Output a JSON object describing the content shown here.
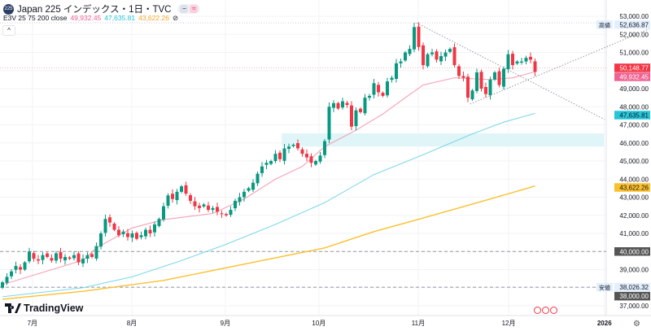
{
  "header": {
    "symbol_badge": "225",
    "title": "Japan 225 インデックス・1日・TVC",
    "pill_icons": [
      "minus-icon",
      "wave-icon"
    ]
  },
  "indicator": {
    "label": "E3V 25 75 200 close",
    "ma25": "49,932.45",
    "ma75": "47,635.81",
    "ma200": "43,622.26",
    "hide_icon": "eye-off-icon"
  },
  "colors": {
    "up": "#089981",
    "down": "#f23645",
    "ma25": "#f7a1b7",
    "ma75": "#7dd8e8",
    "ma200": "#fbc02d",
    "zone": "#dff5f8",
    "high_label_bg": "#e3effd",
    "dark_label": "#555555"
  },
  "logo": {
    "text": "TradingView"
  },
  "chart_data": {
    "type": "candlestick",
    "y_ticks": [
      "53,000.00",
      "52,000.00",
      "51,000.00",
      "49,000.00",
      "48,000.00",
      "47,000.00",
      "46,000.00",
      "45,000.00",
      "44,000.00",
      "43,000.00",
      "42,000.00",
      "41,000.00",
      "39,000.00",
      "37,000.00"
    ],
    "ylim": [
      36500,
      53500
    ],
    "x_ticks": [
      {
        "label": "7月",
        "index": 6.7
      },
      {
        "label": "8月",
        "index": 28.9
      },
      {
        "label": "9月",
        "index": 49.8
      },
      {
        "label": "10月",
        "index": 70.7
      },
      {
        "label": "11月",
        "index": 92.9
      },
      {
        "label": "12月",
        "index": 113.1
      },
      {
        "label": "2026",
        "index": 134.5
      }
    ],
    "closes": [
      38300,
      38600,
      38900,
      39200,
      39000,
      39400,
      40000,
      39600,
      39500,
      39800,
      39700,
      39500,
      39900,
      39600,
      39700,
      39600,
      39800,
      39400,
      39600,
      39800,
      39700,
      40300,
      41000,
      41800,
      41600,
      41200,
      40900,
      41100,
      40800,
      41000,
      40700,
      40900,
      41200,
      41000,
      41500,
      41800,
      42500,
      43100,
      42900,
      43300,
      43600,
      43200,
      42800,
      42500,
      42400,
      42600,
      42300,
      42400,
      42200,
      42100,
      42000,
      42300,
      42800,
      43000,
      43300,
      43500,
      43800,
      44300,
      44700,
      44900,
      45000,
      45400,
      45100,
      45700,
      45800,
      45900,
      45700,
      45400,
      45200,
      44900,
      45000,
      45300,
      46100,
      48000,
      48200,
      47900,
      48300,
      48100,
      46900,
      47800,
      47700,
      48500,
      48600,
      49300,
      48800,
      48600,
      49400,
      49600,
      50400,
      50500,
      51000,
      51200,
      52400,
      51300,
      50300,
      50900,
      51000,
      50600,
      50800,
      51000,
      51200,
      50300,
      49700,
      49600,
      48500,
      48900,
      49900,
      49000,
      48700,
      49500,
      49900,
      49200,
      50100,
      50900,
      50300,
      50500,
      50500,
      50700,
      50600,
      49932
    ],
    "ma25": [
      [
        0,
        38170
      ],
      [
        18,
        39520
      ],
      [
        21,
        40200
      ],
      [
        29,
        41300
      ],
      [
        36,
        41760
      ],
      [
        47,
        42100
      ],
      [
        54,
        42900
      ],
      [
        61,
        44000
      ],
      [
        67,
        44700
      ],
      [
        72,
        45800
      ],
      [
        79,
        46700
      ],
      [
        85,
        47600
      ],
      [
        90,
        48500
      ],
      [
        94,
        49200
      ],
      [
        101,
        49600
      ],
      [
        109,
        49500
      ],
      [
        114,
        49600
      ],
      [
        119,
        49932
      ]
    ],
    "ma75": [
      [
        0,
        37500
      ],
      [
        18,
        38000
      ],
      [
        29,
        38600
      ],
      [
        40,
        39500
      ],
      [
        50,
        40400
      ],
      [
        61,
        41500
      ],
      [
        72,
        42700
      ],
      [
        83,
        44250
      ],
      [
        94,
        45350
      ],
      [
        105,
        46500
      ],
      [
        112,
        47150
      ],
      [
        119,
        47635
      ]
    ],
    "ma200": [
      [
        0,
        37360
      ],
      [
        18,
        37800
      ],
      [
        36,
        38400
      ],
      [
        54,
        39300
      ],
      [
        72,
        40200
      ],
      [
        83,
        41100
      ],
      [
        94,
        41850
      ],
      [
        109,
        42900
      ],
      [
        119,
        43622
      ]
    ],
    "zone": {
      "from_index": 62.4,
      "price_top": 46530,
      "price_bottom": 45800
    },
    "price_labels": [
      {
        "tag": "高値",
        "value": "52,636.87",
        "price": 52636.87,
        "type": "high"
      },
      {
        "value": "50,148.77",
        "price": 50148.77,
        "type": "down"
      },
      {
        "value": "49,932.45",
        "price": 49932.45,
        "type": "ma25"
      },
      {
        "value": "47,635.81",
        "price": 47635.81,
        "type": "ma75"
      },
      {
        "value": "43,622.26",
        "price": 43622.26,
        "type": "ma200"
      },
      {
        "value": "40,000.00",
        "price": 40000,
        "type": "dark"
      },
      {
        "tag": "安値",
        "value": "38,026.32",
        "price": 38026.32,
        "type": "high"
      },
      {
        "value": "38,000.00",
        "price": 38000,
        "type": "dark"
      }
    ],
    "trendlines": [
      [
        [
          92.5,
          52636.87
        ],
        [
          134.5,
          47300
        ]
      ],
      [
        [
          104.5,
          48150
        ],
        [
          144.5,
          52300
        ]
      ]
    ],
    "hlines": [
      {
        "price": 40000,
        "style": "dashed"
      },
      {
        "price": 38026.32,
        "style": "dashed"
      },
      {
        "price": 52636.87,
        "style": "dotted"
      },
      {
        "price": 50148.77,
        "style": "dotted-red"
      }
    ]
  }
}
